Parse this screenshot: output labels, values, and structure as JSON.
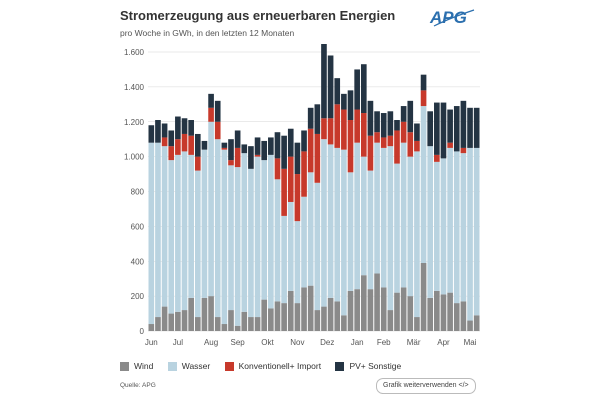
{
  "header": {
    "title": "Stromerzeugung aus erneuerbaren Energien",
    "subtitle": "pro Woche in GWh, in den letzten 12 Monaten",
    "logo_text": "APG"
  },
  "footer": {
    "source": "Quelle: APG",
    "reuse_label": "Grafik weiterverwenden </>"
  },
  "colors": {
    "wind": "#8a8a8a",
    "wasser": "#b9d3e0",
    "konv": "#c7392b",
    "pv": "#243443",
    "logo": "#2b6fae"
  },
  "chart_data": {
    "type": "bar",
    "stacked": true,
    "title": "Stromerzeugung aus erneuerbaren Energien",
    "subtitle": "pro Woche in GWh, in den letzten 12 Monaten",
    "xlabel": "",
    "ylabel": "",
    "ylim": [
      0,
      1600
    ],
    "yticks": [
      0,
      200,
      400,
      600,
      800,
      1000,
      1200,
      1400,
      1600
    ],
    "ytick_labels": [
      "0",
      "200",
      "400",
      "600",
      "800",
      "1.000",
      "1.200",
      "1.400",
      "1.600"
    ],
    "month_labels": [
      {
        "label": "Jun",
        "week": 0.5
      },
      {
        "label": "Jul",
        "week": 4.5
      },
      {
        "label": "Aug",
        "week": 9.5
      },
      {
        "label": "Sep",
        "week": 13.5
      },
      {
        "label": "Okt",
        "week": 18
      },
      {
        "label": "Nov",
        "week": 22.5
      },
      {
        "label": "Dez",
        "week": 27
      },
      {
        "label": "Jan",
        "week": 31.5
      },
      {
        "label": "Feb",
        "week": 35.5
      },
      {
        "label": "Mär",
        "week": 40
      },
      {
        "label": "Apr",
        "week": 44.5
      },
      {
        "label": "Mai",
        "week": 48.5
      }
    ],
    "grid": true,
    "legend_position": "bottom",
    "series": [
      {
        "name": "Wind",
        "color_key": "wind",
        "values": [
          40,
          80,
          140,
          100,
          110,
          120,
          190,
          80,
          190,
          200,
          80,
          40,
          120,
          30,
          110,
          80,
          80,
          180,
          130,
          170,
          160,
          230,
          160,
          250,
          260,
          120,
          140,
          190,
          170,
          90,
          230,
          240,
          320,
          240,
          330,
          250,
          120,
          220,
          250,
          200,
          80,
          390,
          190,
          230,
          210,
          220,
          160,
          170,
          60,
          90
        ]
      },
      {
        "name": "Wasser",
        "values": [
          1040,
          1000,
          920,
          880,
          900,
          910,
          820,
          840,
          850,
          1000,
          1020,
          1000,
          830,
          910,
          910,
          850,
          920,
          800,
          880,
          700,
          500,
          510,
          470,
          520,
          650,
          730,
          960,
          880,
          880,
          950,
          680,
          840,
          680,
          680,
          750,
          800,
          940,
          740,
          830,
          800,
          950,
          900,
          870,
          740,
          780,
          830,
          870,
          850,
          990,
          960
        ]
      },
      {
        "name": "Konventionell+ Import",
        "values": [
          0,
          0,
          50,
          80,
          90,
          100,
          110,
          80,
          0,
          80,
          100,
          10,
          30,
          110,
          0,
          0,
          10,
          0,
          0,
          120,
          270,
          260,
          270,
          260,
          250,
          280,
          120,
          150,
          250,
          230,
          300,
          190,
          250,
          200,
          60,
          60,
          60,
          190,
          120,
          140,
          60,
          90,
          0,
          40,
          0,
          30,
          0,
          30,
          0,
          0
        ]
      },
      {
        "name": "PV+ Sonstige",
        "values": [
          100,
          130,
          80,
          90,
          130,
          90,
          90,
          130,
          50,
          80,
          120,
          30,
          120,
          100,
          50,
          130,
          100,
          110,
          100,
          150,
          190,
          160,
          180,
          120,
          120,
          170,
          430,
          360,
          150,
          90,
          170,
          230,
          280,
          200,
          120,
          140,
          140,
          60,
          90,
          180,
          100,
          90,
          200,
          300,
          320,
          190,
          260,
          270,
          230,
          230
        ]
      }
    ]
  }
}
